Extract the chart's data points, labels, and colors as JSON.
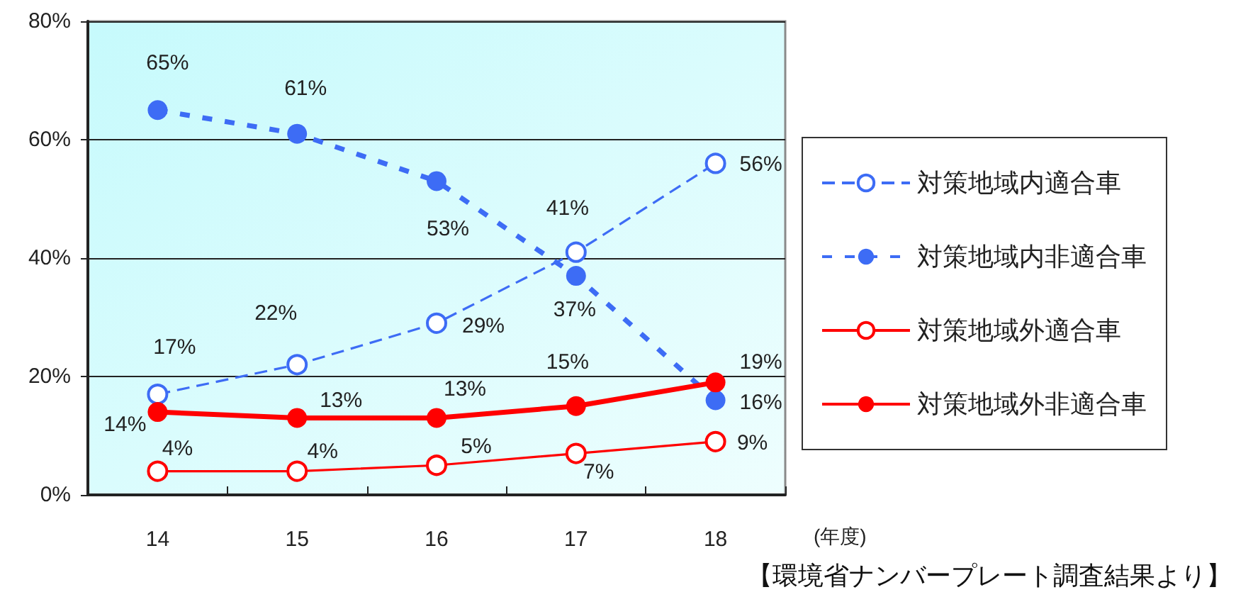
{
  "chart_data": {
    "type": "line",
    "categories": [
      "14",
      "15",
      "16",
      "17",
      "18"
    ],
    "xlabel": "(年度)",
    "ylim": [
      0,
      80
    ],
    "yticks": [
      {
        "value": 0,
        "label": "0%"
      },
      {
        "value": 20,
        "label": "20%"
      },
      {
        "value": 40,
        "label": "40%"
      },
      {
        "value": 60,
        "label": "60%"
      },
      {
        "value": 80,
        "label": "80%"
      }
    ],
    "grid": "y",
    "legend": "right",
    "marker": "circle",
    "series": [
      {
        "name": "対策地域内適合車",
        "color": "#3d6cf5",
        "line_style": "dashed",
        "values": [
          17,
          22,
          29,
          41,
          56
        ],
        "value_labels": [
          "17%",
          "22%",
          "29%",
          "41%",
          "56%"
        ]
      },
      {
        "name": "対策地域内非適合車",
        "color": "#3d6cf5",
        "line_style": "dashed",
        "values": [
          65,
          61,
          53,
          37,
          16
        ],
        "value_labels": [
          "65%",
          "61%",
          "53%",
          "37%",
          "16%"
        ]
      },
      {
        "name": "対策地域外適合車",
        "color": "#ff0000",
        "line_style": "solid",
        "values": [
          4,
          4,
          5,
          7,
          9
        ],
        "value_labels": [
          "4%",
          "4%",
          "5%",
          "7%",
          "9%"
        ]
      },
      {
        "name": "対策地域外非適合車",
        "color": "#ff0000",
        "line_style": "solid",
        "values": [
          14,
          13,
          13,
          15,
          19
        ],
        "value_labels": [
          "14%",
          "13%",
          "13%",
          "15%",
          "19%"
        ]
      }
    ],
    "annotations": [
      "【環境省ナンバープレート調査結果より】"
    ]
  }
}
